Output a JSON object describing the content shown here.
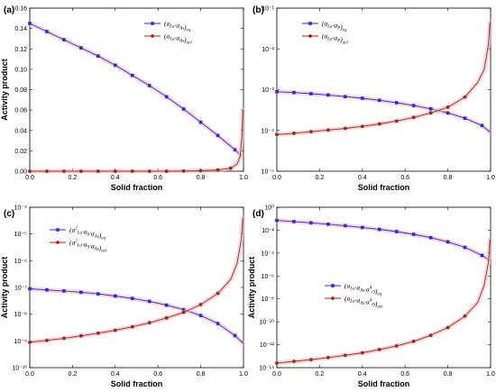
{
  "figure": {
    "panels": [
      {
        "id": "a",
        "label": "(a)"
      },
      {
        "id": "b",
        "label": "(b)"
      },
      {
        "id": "c",
        "label": "(c)"
      },
      {
        "id": "d",
        "label": "(d)"
      }
    ]
  },
  "colors": {
    "blue": "#2b2bd6",
    "red": "#9c2a12",
    "glow": "#f6b6c6"
  },
  "chart_data": [
    {
      "panel": "(a)",
      "type": "line",
      "xlabel": "Solid fraction",
      "ylabel": "Activity product",
      "scale": "linear",
      "xlim": [
        0,
        1.0
      ],
      "ylim": [
        0,
        0.16
      ],
      "xticks": [
        0.0,
        0.2,
        0.4,
        0.6,
        0.8,
        1.0
      ],
      "xtick_labels": [
        "0.0",
        "0.2",
        "0.4",
        "0.6",
        "0.8",
        "1.0"
      ],
      "yticks": [
        0,
        0.02,
        0.04,
        0.06,
        0.08,
        0.1,
        0.12,
        0.14,
        0.16
      ],
      "ytick_labels": [
        "0.00",
        "0.02",
        "0.04",
        "0.06",
        "0.08",
        "0.10",
        "0.12",
        "0.14",
        "0.16"
      ],
      "legend": [
        {
          "main": "(a",
          "sub1": "La",
          "mid": "·a",
          "sub2": "As",
          "close": ")",
          "tail": "eq"
        },
        {
          "main": "(a",
          "sub1": "La",
          "mid": "·a",
          "sub2": "As",
          "close": ")",
          "tail": "act"
        }
      ],
      "series": [
        {
          "color": "blue",
          "marker": "square",
          "x": [
            0,
            0.08,
            0.16,
            0.24,
            0.32,
            0.4,
            0.48,
            0.56,
            0.64,
            0.72,
            0.8,
            0.88,
            0.96,
            0.99
          ],
          "y": [
            0.145,
            0.137,
            0.129,
            0.121,
            0.113,
            0.104,
            0.094,
            0.084,
            0.073,
            0.061,
            0.048,
            0.035,
            0.021,
            0.015
          ],
          "marked": 13
        },
        {
          "color": "red",
          "marker": "circle",
          "x": [
            0,
            0.08,
            0.16,
            0.24,
            0.32,
            0.4,
            0.48,
            0.56,
            0.64,
            0.72,
            0.8,
            0.88,
            0.94,
            0.97,
            0.985,
            0.993,
            0.997
          ],
          "y": [
            0,
            0,
            0,
            0,
            0,
            0,
            0,
            0,
            0,
            0.0002,
            0.0005,
            0.0012,
            0.003,
            0.007,
            0.015,
            0.035,
            0.06
          ],
          "marked": 13
        }
      ]
    },
    {
      "panel": "(b)",
      "type": "line",
      "xlabel": "Solid fraction",
      "ylabel": "",
      "scale": "log",
      "xlim": [
        0,
        1.0
      ],
      "ylim": [
        -5,
        -1
      ],
      "xticks": [
        0.0,
        0.2,
        0.4,
        0.6,
        0.8,
        1.0
      ],
      "xtick_labels": [
        "0.0",
        "0.2",
        "0.4",
        "0.6",
        "0.8",
        "1.0"
      ],
      "yticks": [
        -5,
        -4,
        -3,
        -2,
        -1
      ],
      "ytick_labels": [
        "10⁻⁵",
        "10⁻⁴",
        "10⁻³",
        "10⁻²",
        "10⁻¹"
      ],
      "legend": [
        {
          "main": "(a",
          "sub1": "La",
          "mid": "·a",
          "sub2": "P",
          "close": ")",
          "tail": "eq"
        },
        {
          "main": "(a",
          "sub1": "La",
          "mid": "·a",
          "sub2": "P",
          "close": ")",
          "tail": "act"
        }
      ],
      "series": [
        {
          "color": "blue",
          "marker": "square",
          "x": [
            0,
            0.08,
            0.16,
            0.24,
            0.32,
            0.4,
            0.48,
            0.56,
            0.64,
            0.72,
            0.8,
            0.88,
            0.96,
            1.0
          ],
          "y": [
            -3.05,
            -3.07,
            -3.1,
            -3.13,
            -3.17,
            -3.21,
            -3.26,
            -3.32,
            -3.39,
            -3.47,
            -3.57,
            -3.7,
            -3.88,
            -4.05
          ],
          "marked": 13
        },
        {
          "color": "red",
          "marker": "circle",
          "x": [
            0,
            0.08,
            0.16,
            0.24,
            0.32,
            0.4,
            0.48,
            0.56,
            0.64,
            0.72,
            0.8,
            0.88,
            0.94,
            0.97,
            0.99,
            0.997
          ],
          "y": [
            -4.1,
            -4.07,
            -4.03,
            -3.99,
            -3.95,
            -3.9,
            -3.84,
            -3.77,
            -3.68,
            -3.57,
            -3.43,
            -3.18,
            -2.82,
            -2.5,
            -1.9,
            -1.35
          ],
          "marked": 12
        }
      ]
    },
    {
      "panel": "(c)",
      "type": "line",
      "xlabel": "Solid fraction",
      "ylabel": "Activity product",
      "scale": "log",
      "xlim": [
        0,
        1.0
      ],
      "ylim": [
        -10,
        -4
      ],
      "xticks": [
        0.0,
        0.2,
        0.4,
        0.6,
        0.8,
        1.0
      ],
      "xtick_labels": [
        "0.0",
        "0.2",
        "0.4",
        "0.6",
        "0.8",
        "1.0"
      ],
      "yticks": [
        -10,
        -9,
        -8,
        -7,
        -6,
        -5,
        -4
      ],
      "ytick_labels": [
        "10⁻¹⁰",
        "10⁻⁹",
        "10⁻⁸",
        "10⁻⁷",
        "10⁻⁶",
        "10⁻⁵",
        "10⁻⁴"
      ],
      "legend": [
        {
          "main": "(a",
          "sup1": "2",
          "sub1": "La",
          "mid": "·a",
          "sub2": "S",
          "mid2": "·a",
          "sub3": "As",
          "close": ")",
          "tail": "eq"
        },
        {
          "main": "(a",
          "sup1": "2",
          "sub1": "La",
          "mid": "·a",
          "sub2": "S",
          "mid2": "·a",
          "sub3": "As",
          "close": ")",
          "tail": "act"
        }
      ],
      "series": [
        {
          "color": "blue",
          "marker": "square",
          "x": [
            0,
            0.08,
            0.16,
            0.24,
            0.32,
            0.4,
            0.48,
            0.56,
            0.64,
            0.72,
            0.8,
            0.88,
            0.96,
            1.0
          ],
          "y": [
            -7.05,
            -7.09,
            -7.13,
            -7.18,
            -7.24,
            -7.32,
            -7.41,
            -7.52,
            -7.66,
            -7.83,
            -8.05,
            -8.35,
            -8.8,
            -9.1
          ],
          "marked": 13
        },
        {
          "color": "red",
          "marker": "circle",
          "x": [
            0,
            0.08,
            0.16,
            0.24,
            0.32,
            0.4,
            0.48,
            0.56,
            0.64,
            0.72,
            0.8,
            0.88,
            0.94,
            0.97,
            0.99,
            0.997
          ],
          "y": [
            -9.05,
            -8.98,
            -8.9,
            -8.81,
            -8.71,
            -8.6,
            -8.47,
            -8.32,
            -8.14,
            -7.93,
            -7.64,
            -7.22,
            -6.7,
            -6.1,
            -5.2,
            -4.4
          ],
          "marked": 12
        }
      ]
    },
    {
      "panel": "(d)",
      "type": "line",
      "xlabel": "Solid fraction",
      "ylabel": "Activity product",
      "scale": "log",
      "xlim": [
        0,
        1.0
      ],
      "ylim": [
        -14,
        0
      ],
      "xticks": [
        0.0,
        0.2,
        0.4,
        0.6,
        0.8,
        1.0
      ],
      "xtick_labels": [
        "0.0",
        "0.2",
        "0.4",
        "0.6",
        "0.8",
        "1.0"
      ],
      "yticks": [
        -14,
        -12,
        -10,
        -8,
        -6,
        -4,
        -2,
        0
      ],
      "ytick_labels": [
        "10⁻¹⁴",
        "10⁻¹²",
        "10⁻¹⁰",
        "10⁻⁸",
        "10⁻⁶",
        "10⁻⁴",
        "10⁻²",
        "10⁰"
      ],
      "legend": [
        {
          "main": "(a",
          "sub1": "La",
          "mid": "·a",
          "sub2": "As",
          "mid2": "·a",
          "sup3": "4",
          "sub3": "O",
          "close": ")",
          "tail": "eq"
        },
        {
          "main": "(a",
          "sub1": "La",
          "mid": "·a",
          "sub2": "As",
          "mid2": "·a",
          "sup3": "4",
          "sub3": "O",
          "close": ")",
          "tail": "act"
        }
      ],
      "series": [
        {
          "color": "blue",
          "marker": "square",
          "x": [
            0,
            0.08,
            0.16,
            0.24,
            0.32,
            0.4,
            0.48,
            0.56,
            0.64,
            0.72,
            0.8,
            0.88,
            0.96,
            1.0
          ],
          "y": [
            -1.15,
            -1.25,
            -1.36,
            -1.48,
            -1.61,
            -1.76,
            -1.93,
            -2.12,
            -2.36,
            -2.65,
            -3.02,
            -3.5,
            -4.2,
            -4.7
          ],
          "marked": 13
        },
        {
          "color": "red",
          "marker": "circle",
          "x": [
            0,
            0.08,
            0.16,
            0.24,
            0.32,
            0.4,
            0.48,
            0.56,
            0.64,
            0.72,
            0.8,
            0.88,
            0.94,
            0.97,
            0.99,
            0.997
          ],
          "y": [
            -13.6,
            -13.45,
            -13.3,
            -13.12,
            -12.92,
            -12.7,
            -12.42,
            -12.1,
            -11.7,
            -11.18,
            -10.5,
            -9.5,
            -8.3,
            -6.8,
            -4.8,
            -2.8
          ],
          "marked": 12
        }
      ]
    }
  ]
}
